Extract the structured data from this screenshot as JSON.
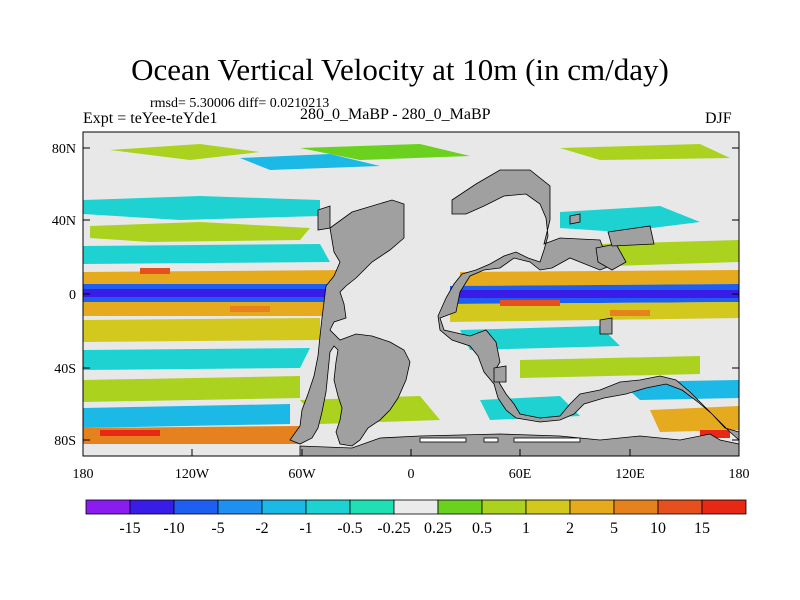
{
  "title": "Ocean Vertical Velocity at 10m (in cm/day)",
  "stats": "rmsd= 5.30006 diff= 0.0210213",
  "experiment": "Expt = teYee-teYde1",
  "case": "280_0_MaBP - 280_0_MaBP",
  "season": "DJF",
  "lat_ticks": [
    "80N",
    "40N",
    "0",
    "40S",
    "80S"
  ],
  "lon_ticks": [
    "180",
    "120W",
    "60W",
    "0",
    "60E",
    "120E",
    "180"
  ],
  "colorbar": {
    "labels": [
      "-15",
      "-10",
      "-5",
      "-2",
      "-1",
      "-0.5",
      "-0.25",
      "0.25",
      "0.5",
      "1",
      "2",
      "5",
      "10",
      "15"
    ],
    "colors": [
      "#8a1cf0",
      "#3a1ce8",
      "#1e5ef0",
      "#1e90f0",
      "#1cb8e6",
      "#1ed2d2",
      "#1ee0b4",
      "#ebebeb",
      "#6ad21e",
      "#aad21e",
      "#d2c81e",
      "#e6aa1e",
      "#e6821e",
      "#e6501e",
      "#e62814"
    ]
  },
  "colors": {
    "land": "#a0a0a0",
    "ocean_neutral": "#e8e8e8"
  }
}
